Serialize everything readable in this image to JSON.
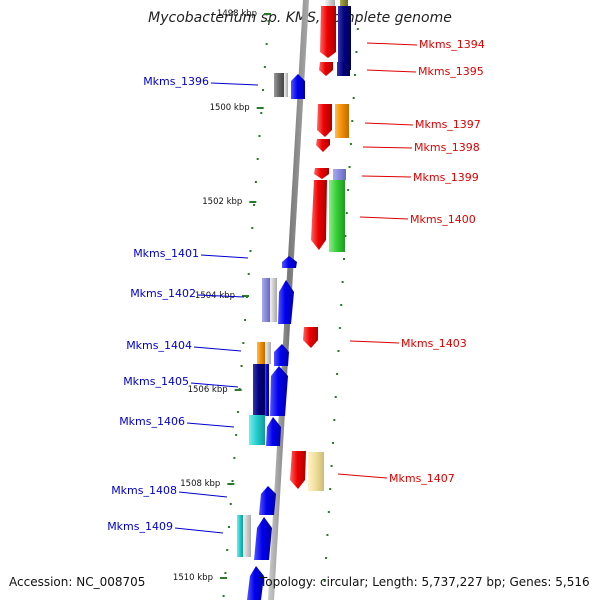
{
  "title": "Mycobacterium sp. KMS, complete genome",
  "footer": {
    "accession": "Accession: NC_008705",
    "summary": "Topology: circular; Length: 5,737,227 bp; Genes: 5,516"
  },
  "axis_ticks": [
    {
      "label": "1498 kbp",
      "kbp": 1498
    },
    {
      "label": "1500 kbp",
      "kbp": 1500
    },
    {
      "label": "1502 kbp",
      "kbp": 1502
    },
    {
      "label": "1504 kbp",
      "kbp": 1504
    },
    {
      "label": "1506 kbp",
      "kbp": 1506
    },
    {
      "label": "1508 kbp",
      "kbp": 1508
    },
    {
      "label": "1510 kbp",
      "kbp": 1510
    }
  ],
  "genes_right": [
    {
      "label": "Mkms_1394",
      "color": "#dd0000"
    },
    {
      "label": "Mkms_1395",
      "color": "#dd0000"
    },
    {
      "label": "Mkms_1397",
      "color": "#dd0000"
    },
    {
      "label": "Mkms_1398",
      "color": "#dd0000"
    },
    {
      "label": "Mkms_1399",
      "color": "#dd0000"
    },
    {
      "label": "Mkms_1400",
      "color": "#dd0000"
    },
    {
      "label": "Mkms_1403",
      "color": "#dd0000"
    },
    {
      "label": "Mkms_1407",
      "color": "#dd0000"
    }
  ],
  "genes_left": [
    {
      "label": "Mkms_1396",
      "color": "#0000cc"
    },
    {
      "label": "Mkms_1401",
      "color": "#0000cc"
    },
    {
      "label": "Mkms_1402",
      "color": "#0000cc"
    },
    {
      "label": "Mkms_1404",
      "color": "#0000cc"
    },
    {
      "label": "Mkms_1405",
      "color": "#0000cc"
    },
    {
      "label": "Mkms_1406",
      "color": "#0000cc"
    },
    {
      "label": "Mkms_1408",
      "color": "#0000cc"
    },
    {
      "label": "Mkms_1409",
      "color": "#0000cc"
    }
  ],
  "colors": {
    "forward_strand": "#ee0000",
    "reverse_strand": "#0000ee",
    "backbone": "#888888",
    "tick": "#2a7a2a",
    "navy": "#000080",
    "orange": "#f08c00",
    "green": "#33cc33",
    "lavender": "#8888dd",
    "gray": "#666666",
    "cyan": "#22cccc",
    "khaki": "#eedd99",
    "olive": "#888833"
  }
}
